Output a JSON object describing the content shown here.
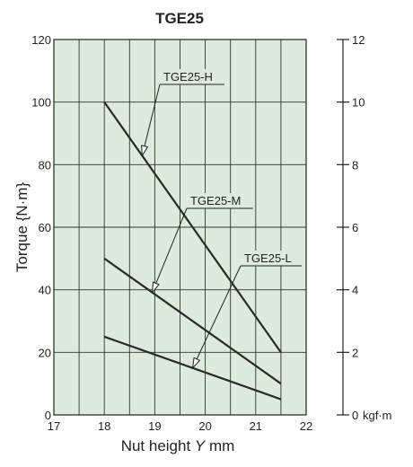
{
  "chart_data": {
    "type": "line",
    "title": "TGE25",
    "xlabel": "Nut height Y mm",
    "xlabel_parts": [
      "Nut height ",
      "Y",
      " mm"
    ],
    "ylabel": "Torque {N·m}",
    "y2label": "kgf·m",
    "xlim": [
      17,
      22
    ],
    "ylim": [
      0,
      120
    ],
    "y2lim": [
      0,
      12
    ],
    "xticks": [
      17,
      18,
      19,
      20,
      21,
      22
    ],
    "yticks": [
      0,
      20,
      40,
      60,
      80,
      100,
      120
    ],
    "y2ticks": [
      0,
      2,
      4,
      6,
      8,
      10,
      12
    ],
    "grid": true,
    "background": "#dcebdc",
    "line_color": "#2a2a2a",
    "series": [
      {
        "name": "TGE25-H",
        "x": [
          18,
          21.5
        ],
        "y": [
          100,
          20
        ]
      },
      {
        "name": "TGE25-M",
        "x": [
          18,
          21.5
        ],
        "y": [
          50,
          10
        ]
      },
      {
        "name": "TGE25-L",
        "x": [
          18,
          21.5
        ],
        "y": [
          25,
          5
        ]
      }
    ],
    "annotations": [
      {
        "text": "TGE25-H",
        "series": "TGE25-H",
        "point_x": 18.75
      },
      {
        "text": "TGE25-M",
        "series": "TGE25-M",
        "point_x": 18.95
      },
      {
        "text": "TGE25-L",
        "series": "TGE25-L",
        "point_x": 19.75
      }
    ]
  }
}
